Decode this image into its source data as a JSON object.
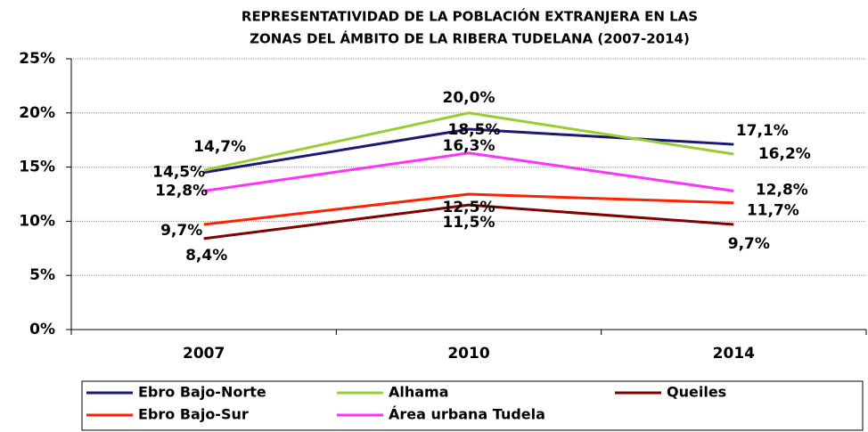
{
  "chart_data": {
    "type": "line",
    "title": [
      "REPRESENTATIVIDAD DE LA POBLACIÓN EXTRANJERA EN LAS",
      "ZONAS DEL ÁMBITO DE LA RIBERA TUDELANA (2007-2014)"
    ],
    "categories": [
      "2007",
      "2010",
      "2014"
    ],
    "series": [
      {
        "name": "Ebro Bajo-Norte",
        "color": "#1a1a73",
        "values": [
          14.5,
          18.5,
          17.1
        ],
        "value_labels": [
          "14,5%",
          "18,5%",
          "17,1%"
        ]
      },
      {
        "name": "Alhama",
        "color": "#99cc33",
        "values": [
          14.7,
          20.0,
          16.2
        ],
        "value_labels": [
          "14,7%",
          "20,0%",
          "16,2%"
        ]
      },
      {
        "name": "Queiles",
        "color": "#800000",
        "values": [
          8.4,
          11.5,
          9.7
        ],
        "value_labels": [
          "8,4%",
          "11,5%",
          "9,7%"
        ]
      },
      {
        "name": "Ebro Bajo-Sur",
        "color": "#ff2200",
        "values": [
          9.7,
          12.5,
          11.7
        ],
        "value_labels": [
          "9,7%",
          "12,5%",
          "11,7%"
        ]
      },
      {
        "name": "Área urbana Tudela",
        "color": "#ff33ff",
        "values": [
          12.8,
          16.3,
          12.8
        ],
        "value_labels": [
          "12,8%",
          "16,3%",
          "12,8%"
        ]
      }
    ],
    "ylim": [
      0,
      25
    ],
    "yticks": [
      {
        "value": 0,
        "label": "0%"
      },
      {
        "value": 5,
        "label": "5%"
      },
      {
        "value": 10,
        "label": "10%"
      },
      {
        "value": 15,
        "label": "15%"
      },
      {
        "value": 20,
        "label": "20%"
      },
      {
        "value": 25,
        "label": "25%"
      }
    ],
    "grid": true,
    "legend": "bottom"
  }
}
